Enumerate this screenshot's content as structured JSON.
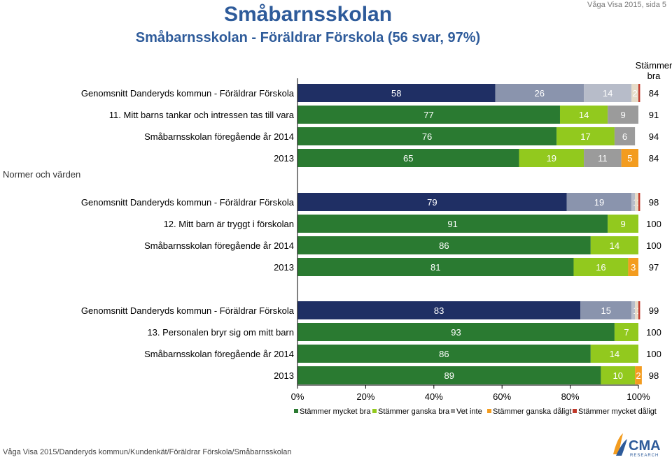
{
  "header": {
    "title": "Småbarnsskolan",
    "subtitle": "Småbarnsskolan - Föräldrar Förskola (56 svar, 97%)",
    "page_ref": "Våga Visa 2015, sida 5"
  },
  "footer": {
    "path": "Våga Visa 2015/Danderyds kommun/Kundenkät/Föräldrar Förskola/Småbarnsskolan"
  },
  "logo": {
    "text": "CMA",
    "subtext": "RESEARCH"
  },
  "chart_data": {
    "type": "bar",
    "orientation": "horizontal",
    "stacked": true,
    "xlim": [
      0,
      100
    ],
    "xticks": [
      "0%",
      "20%",
      "40%",
      "60%",
      "80%",
      "100%"
    ],
    "right_column_header": "Stämmer bra",
    "section_label": "Normer och värden",
    "legend": [
      "Stämmer mycket bra",
      "Stämmer ganska bra",
      "Vet inte",
      "Stämmer ganska dåligt",
      "Stämmer mycket dåligt"
    ],
    "colors": {
      "avg": [
        "#1f2f64",
        "#8a94ad",
        "#b7bcc9",
        "#e6dcc8",
        "#c0392b"
      ],
      "normal": [
        "#2a7a31",
        "#92c91e",
        "#9b9b9b",
        "#f39c1f",
        "#c0392b"
      ]
    },
    "groups": [
      {
        "rows": [
          {
            "label": "Genomsnitt Danderyds kommun - Föräldrar Förskola",
            "style": "avg",
            "values": [
              58,
              26,
              14,
              2,
              0.5
            ],
            "labels": [
              "58",
              "26",
              "14",
              "2",
              "0"
            ],
            "total": "84"
          },
          {
            "label": "11. Mitt barns tankar och intressen tas till vara",
            "style": "normal",
            "values": [
              77,
              14,
              9,
              0,
              0
            ],
            "labels": [
              "77",
              "14",
              "9",
              "0",
              ""
            ],
            "total": "91"
          },
          {
            "label": "Småbarnsskolan föregående år 2014",
            "style": "normal",
            "values": [
              76,
              17,
              6,
              0,
              0
            ],
            "labels": [
              "76",
              "17",
              "6",
              "0",
              ""
            ],
            "total": "94"
          },
          {
            "label": "2013",
            "style": "normal",
            "values": [
              65,
              19,
              11,
              5,
              0
            ],
            "labels": [
              "65",
              "19",
              "11",
              "5",
              "0"
            ],
            "total": "84"
          }
        ]
      },
      {
        "rows": [
          {
            "label": "Genomsnitt Danderyds kommun - Föräldrar Förskola",
            "style": "avg",
            "values": [
              79,
              19,
              1,
              1,
              0.5
            ],
            "labels": [
              "79",
              "19",
              "1",
              "1",
              "0"
            ],
            "total": "98"
          },
          {
            "label": "12. Mitt barn är tryggt i förskolan",
            "style": "normal",
            "values": [
              91,
              9,
              0,
              0,
              0
            ],
            "labels": [
              "91",
              "9",
              "0",
              "",
              ""
            ],
            "total": "100"
          },
          {
            "label": "Småbarnsskolan föregående år 2014",
            "style": "normal",
            "values": [
              86,
              14,
              0,
              0,
              0
            ],
            "labels": [
              "86",
              "14",
              "0",
              "",
              ""
            ],
            "total": "100"
          },
          {
            "label": "2013",
            "style": "normal",
            "values": [
              81,
              16,
              0,
              3,
              0
            ],
            "labels": [
              "81",
              "16",
              "0",
              "3",
              "0"
            ],
            "total": "97"
          }
        ]
      },
      {
        "rows": [
          {
            "label": "Genomsnitt Danderyds kommun - Föräldrar Förskola",
            "style": "avg",
            "values": [
              83,
              15,
              1,
              1,
              0.5
            ],
            "labels": [
              "83",
              "15",
              "1",
              "1",
              "0"
            ],
            "total": "99"
          },
          {
            "label": "13. Personalen bryr sig om mitt barn",
            "style": "normal",
            "values": [
              93,
              7,
              0,
              0,
              0
            ],
            "labels": [
              "93",
              "7",
              "0",
              "",
              ""
            ],
            "total": "100"
          },
          {
            "label": "Småbarnsskolan föregående år 2014",
            "style": "normal",
            "values": [
              86,
              14,
              0,
              0,
              0
            ],
            "labels": [
              "86",
              "14",
              "0",
              "",
              ""
            ],
            "total": "100"
          },
          {
            "label": "2013",
            "style": "normal",
            "values": [
              89,
              10,
              0,
              2,
              0
            ],
            "labels": [
              "89",
              "10",
              "0",
              "2",
              ""
            ],
            "total": "98"
          }
        ]
      }
    ]
  }
}
